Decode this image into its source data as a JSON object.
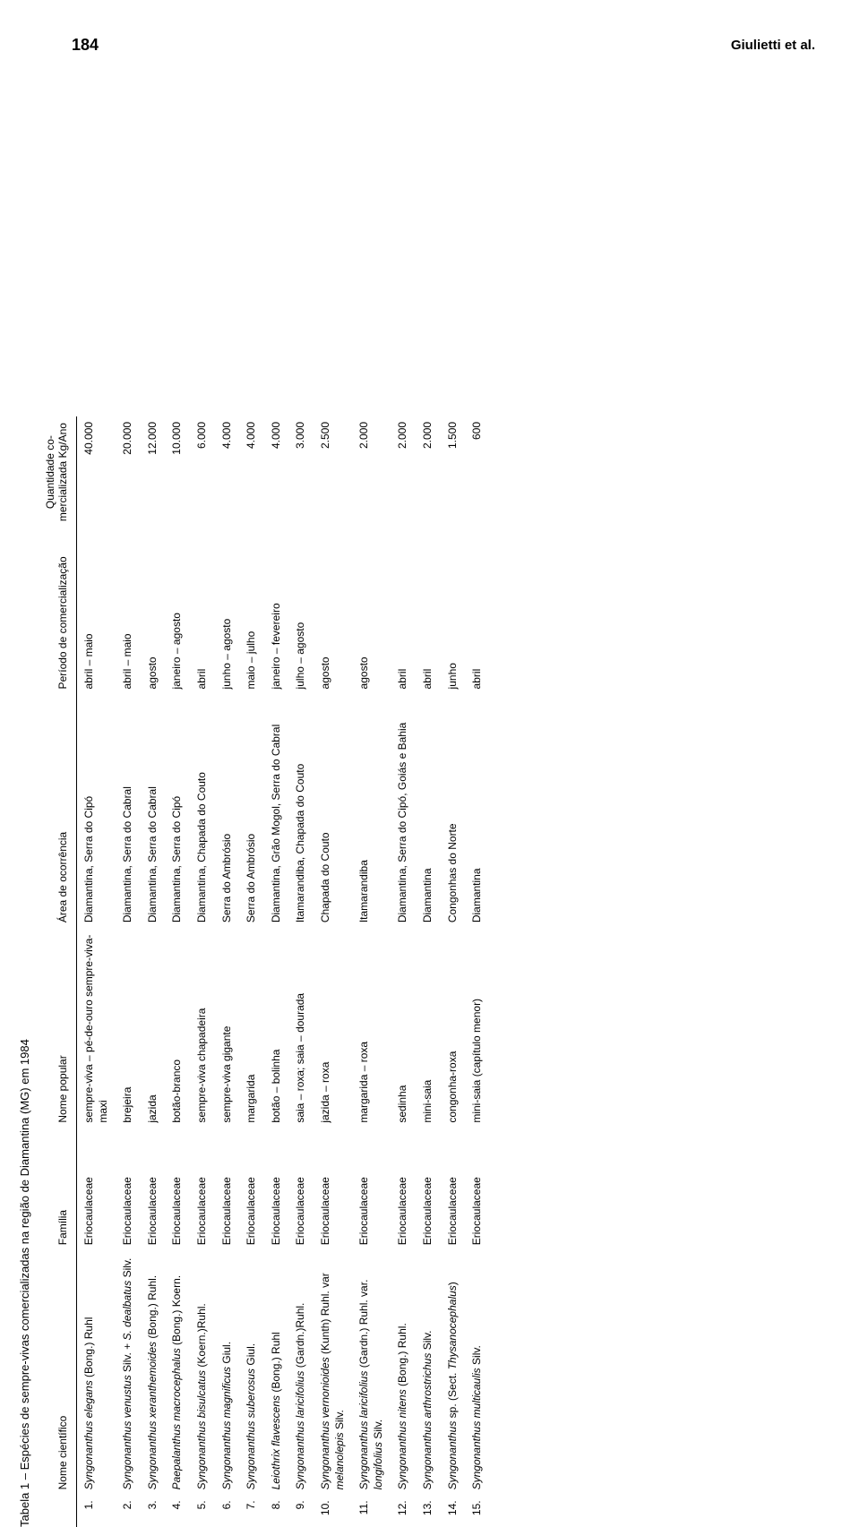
{
  "page_number": "184",
  "authors": "Giulietti et al.",
  "table_title": "Tabela 1 – Espécies de sempre-vivas comercializadas na região de Diamantina (MG) em 1984",
  "headers": {
    "nome_cientifico": "Nome científico",
    "familia": "Família",
    "nome_popular": "Nome popular",
    "area": "Área de ocorrência",
    "periodo": "Período de comercialização",
    "quantidade": "Quantidade co-mercializada Kg/Ano"
  },
  "rows": [
    {
      "num": "1.",
      "nome_cientifico_html": "<span class='species-name'>Syngonanthus elegans</span> <span class='non-italic'>(Bong.) Ruhl</span>",
      "familia": "Eriocaulaceae",
      "nome_popular": "sempre-viva – pé-de-ouro sempre-viva-maxi",
      "area": "Diamantina, Serra do Cipó",
      "periodo": "abril – maio",
      "quantidade": "40.000"
    },
    {
      "num": "2.",
      "nome_cientifico_html": "<span class='species-name'>Syngonanthus venustus</span> <span class='non-italic'>Silv. +</span> <span class='species-name'>S. dealbatus</span> <span class='non-italic'>Silv.</span>",
      "familia": "Eriocaulaceae",
      "nome_popular": "brejeira",
      "area": "Diamantina, Serra do Cabral",
      "periodo": "abril – maio",
      "quantidade": "20.000"
    },
    {
      "num": "3.",
      "nome_cientifico_html": "<span class='species-name'>Syngonanthus xeranthemoides</span> <span class='non-italic'>(Bong.) Ruhl.</span>",
      "familia": "Eriocaulaceae",
      "nome_popular": "jazida",
      "area": "Diamantina, Serra do Cabral",
      "periodo": "agosto",
      "quantidade": "12.000"
    },
    {
      "num": "4.",
      "nome_cientifico_html": "<span class='species-name'>Paepalanthus macrocephalus</span> <span class='non-italic'>(Bong.) Koern.</span>",
      "familia": "Eriocaulaceae",
      "nome_popular": "botão-branco",
      "area": "Diamantina, Serra do Cipó",
      "periodo": "janeiro – agosto",
      "quantidade": "10.000"
    },
    {
      "num": "5.",
      "nome_cientifico_html": "<span class='species-name'>Syngonanthus bisulcatus</span> <span class='non-italic'>(Koern.)Ruhl.</span>",
      "familia": "Eriocaulaceae",
      "nome_popular": "sempre-viva chapadeira",
      "area": "Diamantina, Chapada do Couto",
      "periodo": "abril",
      "quantidade": "6.000"
    },
    {
      "num": "6.",
      "nome_cientifico_html": "<span class='species-name'>Syngonanthus magnificus</span> <span class='non-italic'>Giul.</span>",
      "familia": "Eriocaulaceae",
      "nome_popular": "sempre-viva gigante",
      "area": "Serra do Ambrósio",
      "periodo": "junho – agosto",
      "quantidade": "4.000"
    },
    {
      "num": "7.",
      "nome_cientifico_html": "<span class='species-name'>Syngonanthus suberosus</span> <span class='non-italic'>Giul.</span>",
      "familia": "Eriocaulaceae",
      "nome_popular": "margarida",
      "area": "Serra do Ambrósio",
      "periodo": "maio – julho",
      "quantidade": "4.000"
    },
    {
      "num": "8.",
      "nome_cientifico_html": "<span class='species-name'>Leiothrix flavescens</span> <span class='non-italic'>(Bong.) Ruhl</span>",
      "familia": "Eriocaulaceae",
      "nome_popular": "botão – bolinha",
      "area": "Diamantina, Grão Mogol, Serra do Cabral",
      "periodo": "janeiro – fevereiro",
      "quantidade": "4.000"
    },
    {
      "num": "9.",
      "nome_cientifico_html": "<span class='species-name'>Syngonanthus laricifolius</span> <span class='non-italic'>(Gardn.)Ruhl.</span>",
      "familia": "Eriocaulaceae",
      "nome_popular": "saia – roxa; saia – dourada",
      "area": "Itamarandiba, Chapada do Couto",
      "periodo": "julho – agosto",
      "quantidade": "3.000"
    },
    {
      "num": "10.",
      "nome_cientifico_html": "<span class='species-name'>Syngonanthus vernonioides</span> <span class='non-italic'>(Kunth) Ruhl. var</span> <span class='species-name'>melanolepis</span> <span class='non-italic'>Silv.</span>",
      "familia": "Eriocaulaceae",
      "nome_popular": "jazida – roxa",
      "area": "Chapada do Couto",
      "periodo": "agosto",
      "quantidade": "2.500"
    },
    {
      "num": "11.",
      "nome_cientifico_html": "<span class='species-name'>Syngonanthus laricifolius</span> <span class='non-italic'>(Gardn.) Ruhl. var.</span> <span class='species-name'>longifolius</span> <span class='non-italic'>Silv.</span>",
      "familia": "Eriocaulaceae",
      "nome_popular": "margarida – roxa",
      "area": "Itamarandiba",
      "periodo": "agosto",
      "quantidade": "2.000"
    },
    {
      "num": "12.",
      "nome_cientifico_html": "<span class='species-name'>Syngonanthus nitens</span> <span class='non-italic'>(Bong.) Ruhl.</span>",
      "familia": "Eriocaulaceae",
      "nome_popular": "sedinha",
      "area": "Diamantina, Serra do Cipó, Goiás e Bahia",
      "periodo": "abril",
      "quantidade": "2.000"
    },
    {
      "num": "13.",
      "nome_cientifico_html": "<span class='species-name'>Syngonanthus arthrostrichus</span> <span class='non-italic'>Silv.</span>",
      "familia": "Eriocaulaceae",
      "nome_popular": "mini-saia",
      "area": "Diamantina",
      "periodo": "abril",
      "quantidade": "2.000"
    },
    {
      "num": "14.",
      "nome_cientifico_html": "<span class='species-name'>Syngonanthus</span> <span class='non-italic'>sp. (Sect.</span> <span class='species-name'>Thysanocephalus</span><span class='non-italic'>)</span>",
      "familia": "Eriocaulaceae",
      "nome_popular": "congonha-roxa",
      "area": "Congonhas do Norte",
      "periodo": "junho",
      "quantidade": "1.500"
    },
    {
      "num": "15.",
      "nome_cientifico_html": "<span class='species-name'>Syngonanthus multicaulis</span> <span class='non-italic'>Silv.</span>",
      "familia": "Eriocaulaceae",
      "nome_popular": "mini-saia (capítulo menor)",
      "area": "Diamantina",
      "periodo": "abril",
      "quantidade": "600"
    }
  ]
}
